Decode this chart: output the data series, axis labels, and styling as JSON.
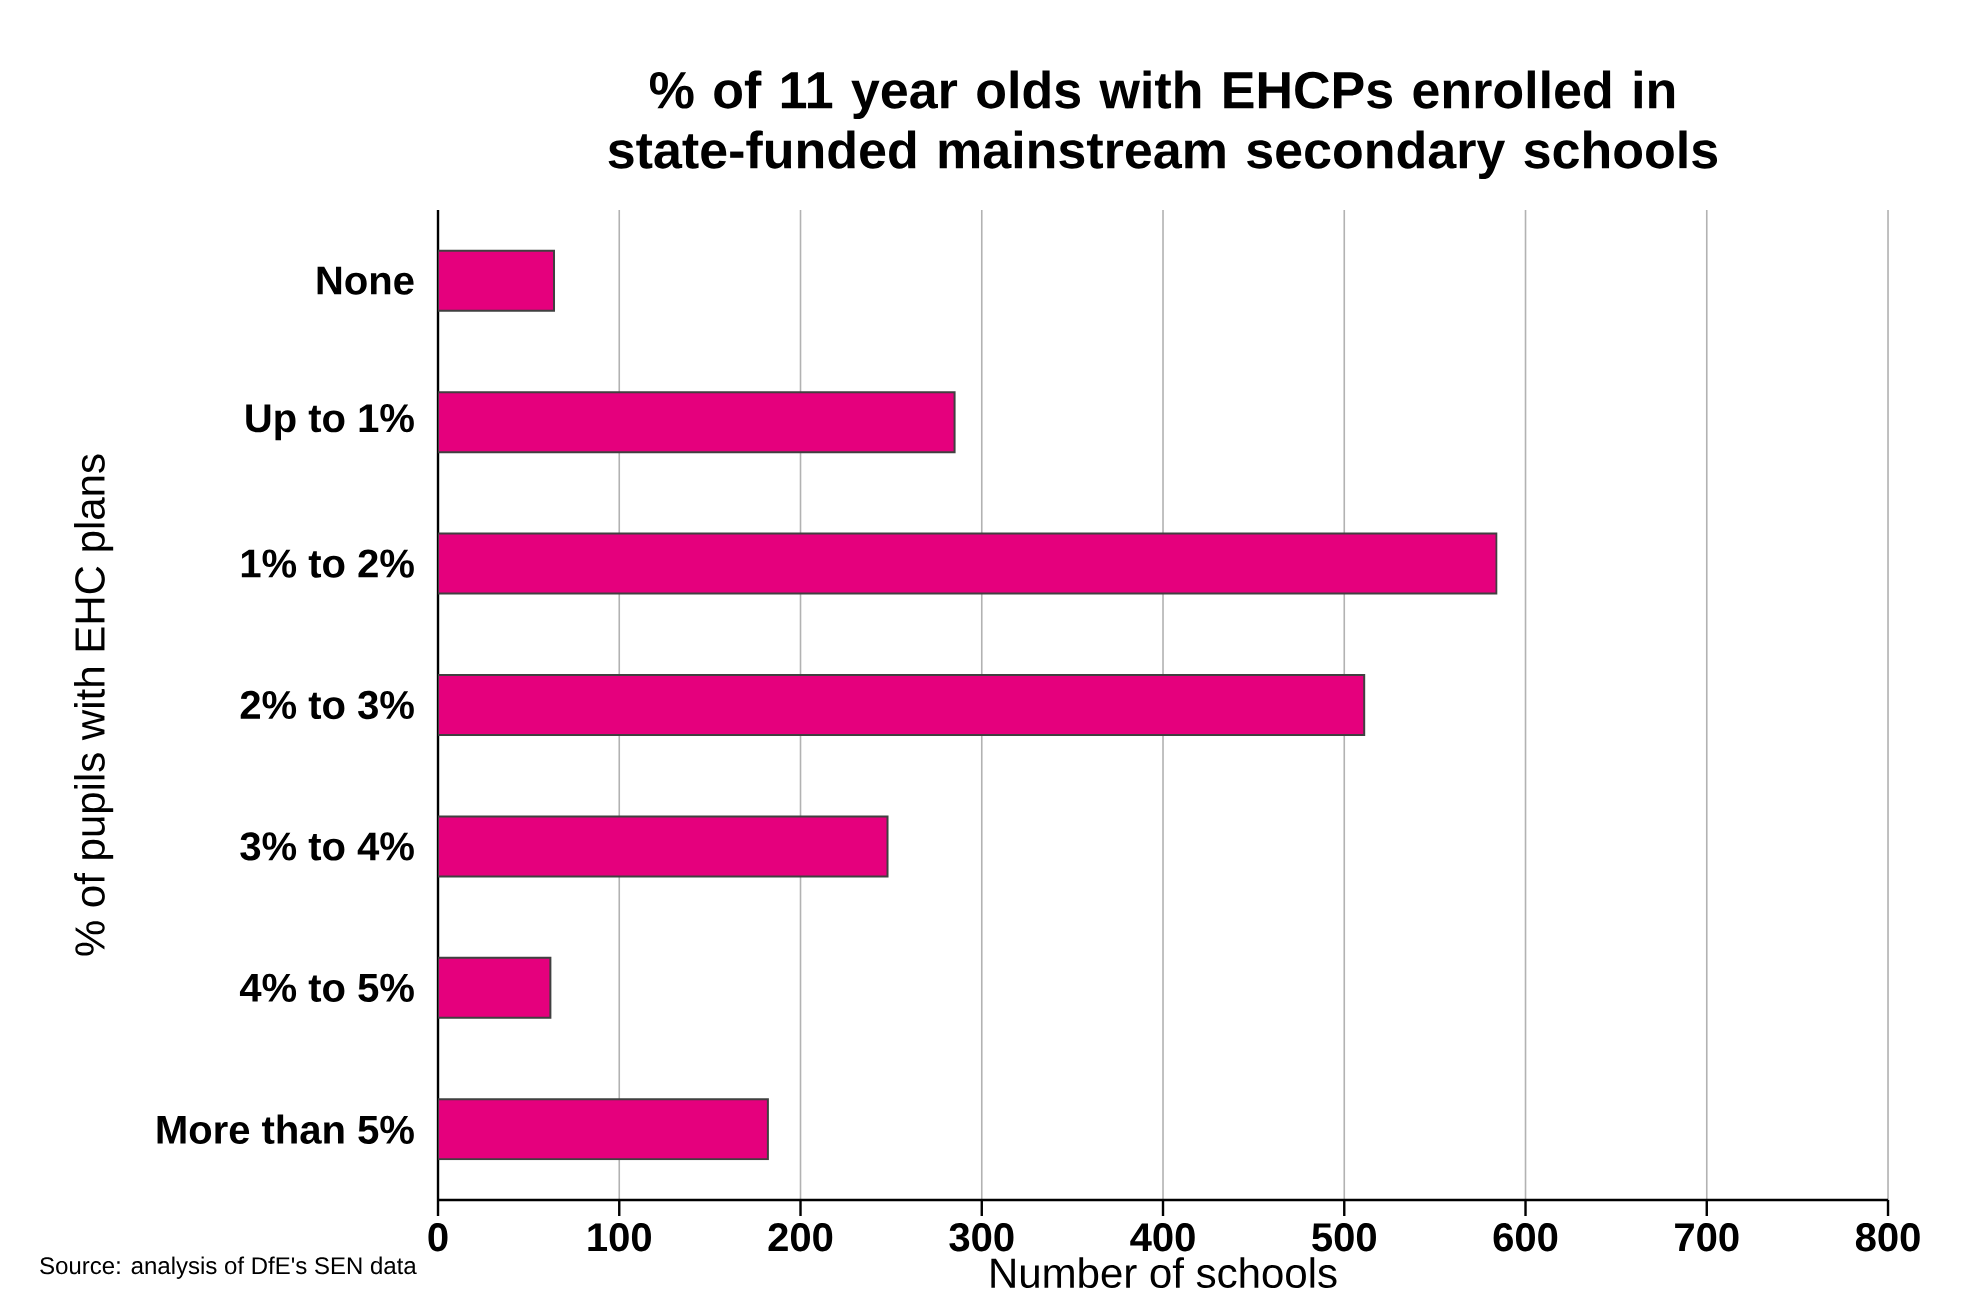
{
  "chart_data": {
    "type": "bar",
    "orientation": "horizontal",
    "title": "% of 11 year olds with EHCPs enrolled in state-funded mainstream secondary schools",
    "xlabel": "Number of schools",
    "ylabel": "% of pupils with EHC plans",
    "categories": [
      "None",
      "Up to 1%",
      "1% to 2%",
      "2% to 3%",
      "3% to 4%",
      "4% to 5%",
      "More than 5%"
    ],
    "values": [
      64,
      285,
      584,
      511,
      248,
      62,
      182
    ],
    "color": "#e5007d",
    "xlim": [
      0,
      800
    ],
    "xticks": [
      0,
      100,
      200,
      300,
      400,
      500,
      600,
      700,
      800
    ],
    "grid": "x",
    "annotations": [
      "Source: analysis of DfE's SEN data"
    ]
  }
}
